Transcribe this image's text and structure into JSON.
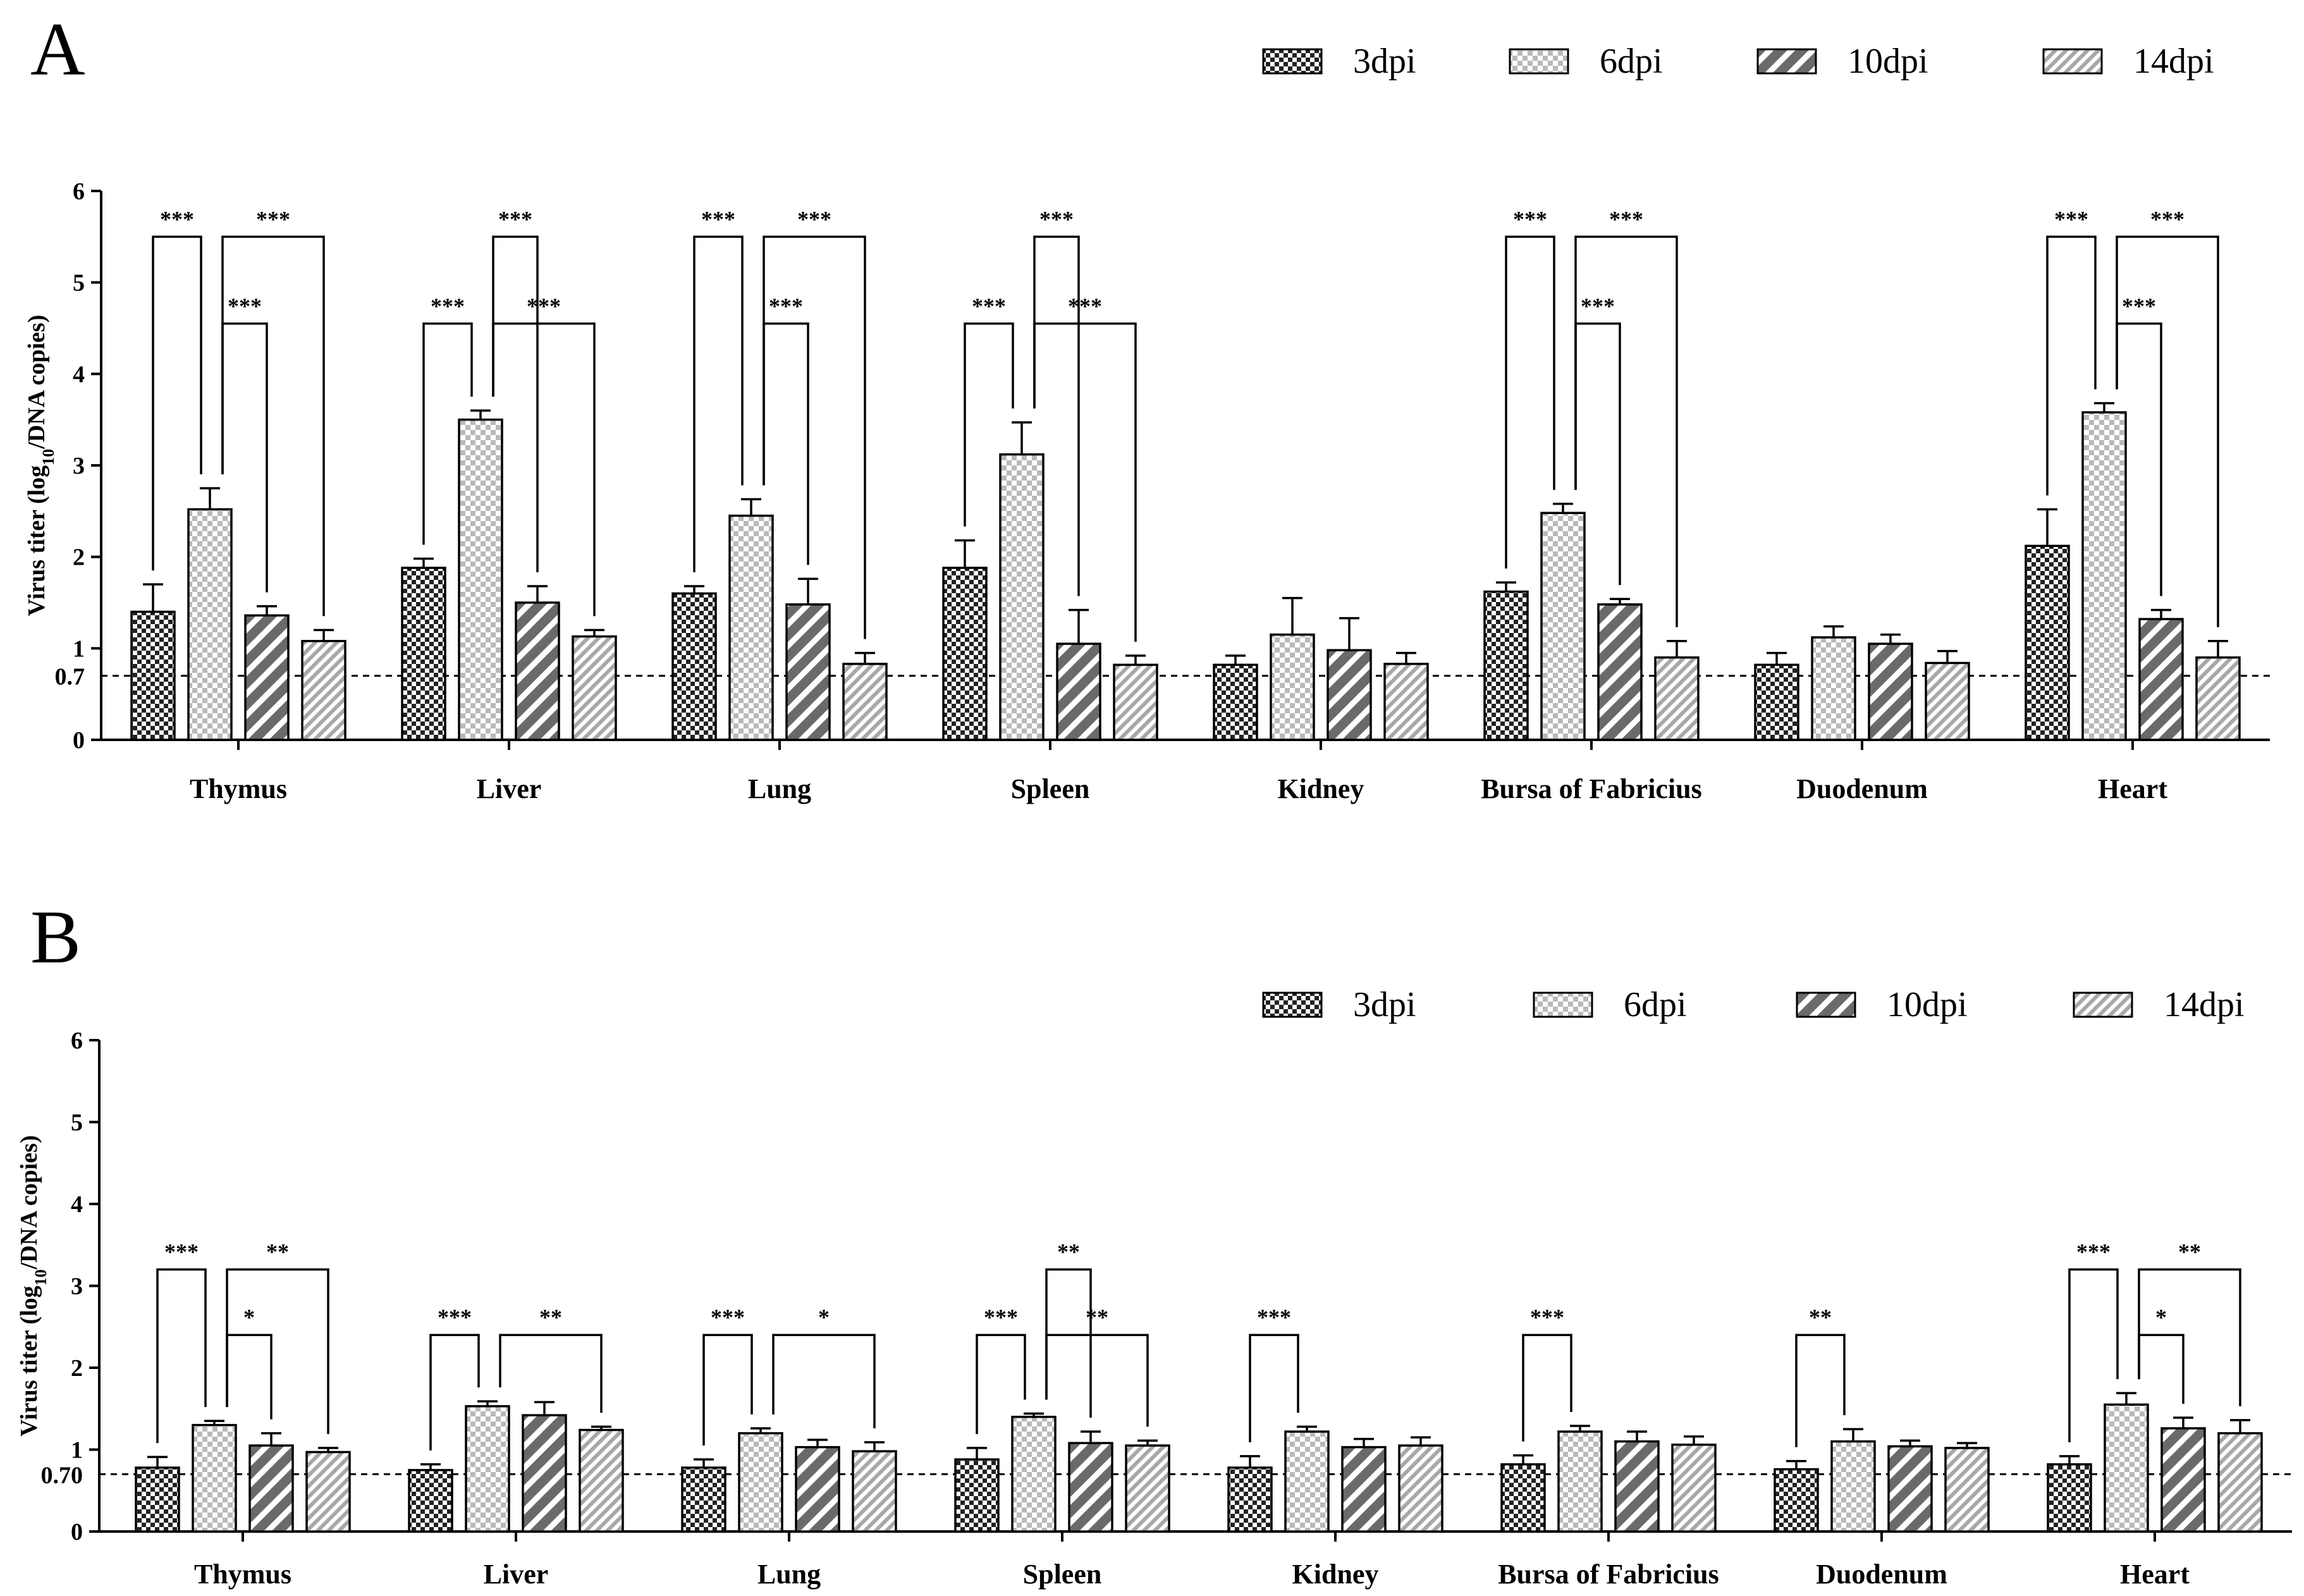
{
  "figure": {
    "series_names": [
      "3dpi",
      "6dpi",
      "10dpi",
      "14dpi"
    ],
    "series_patterns": [
      "checker-dense",
      "checker-light",
      "diag-dark",
      "diag-light"
    ],
    "colors": {
      "ink": "#000000",
      "dark_fill": "#3a3a3a",
      "mid_fill": "#707070",
      "light_fill": "#b8b8b8",
      "background": "#ffffff"
    }
  },
  "chart_data": [
    {
      "panel": "A",
      "type": "bar",
      "ylabel_main": "Virus titer (log",
      "ylabel_sub": "10",
      "ylabel_tail": "/DNA copies)",
      "ylim": [
        0,
        6
      ],
      "yticks": [
        "0",
        "1",
        "2",
        "3",
        "4",
        "5",
        "6"
      ],
      "threshold": 0.7,
      "threshold_label": "0.7",
      "categories": [
        "Thymus",
        "Liver",
        "Lung",
        "Spleen",
        "Kidney",
        "Bursa of Fabricius",
        "Duodenum",
        "Heart"
      ],
      "series": [
        {
          "name": "3dpi",
          "values": [
            1.4,
            1.88,
            1.6,
            1.88,
            0.82,
            1.62,
            0.82,
            2.12
          ],
          "errors": [
            0.3,
            0.1,
            0.08,
            0.3,
            0.1,
            0.1,
            0.13,
            0.4
          ]
        },
        {
          "name": "6dpi",
          "values": [
            2.52,
            3.5,
            2.45,
            3.12,
            1.15,
            2.48,
            1.12,
            3.58
          ],
          "errors": [
            0.23,
            0.1,
            0.18,
            0.35,
            0.4,
            0.1,
            0.12,
            0.1
          ]
        },
        {
          "name": "10dpi",
          "values": [
            1.36,
            1.5,
            1.48,
            1.05,
            0.98,
            1.48,
            1.05,
            1.32
          ],
          "errors": [
            0.1,
            0.18,
            0.28,
            0.37,
            0.35,
            0.06,
            0.1,
            0.1
          ]
        },
        {
          "name": "14dpi",
          "values": [
            1.08,
            1.13,
            0.83,
            0.82,
            0.83,
            0.9,
            0.84,
            0.9
          ],
          "errors": [
            0.12,
            0.07,
            0.12,
            0.1,
            0.12,
            0.18,
            0.13,
            0.18
          ]
        }
      ],
      "significance": [
        {
          "category": 0,
          "from": 0,
          "to": 1,
          "label": "***",
          "level": 5.5
        },
        {
          "category": 0,
          "from": 1,
          "to": 3,
          "label": "***",
          "level": 5.5
        },
        {
          "category": 0,
          "from": 1,
          "to": 2,
          "label": "***",
          "level": 4.55
        },
        {
          "category": 1,
          "from": 1,
          "to": 2,
          "label": "***",
          "level": 5.5
        },
        {
          "category": 1,
          "from": 0,
          "to": 1,
          "label": "***",
          "level": 4.55
        },
        {
          "category": 1,
          "from": 1,
          "to": 3,
          "label": "***",
          "level": 4.55
        },
        {
          "category": 2,
          "from": 0,
          "to": 1,
          "label": "***",
          "level": 5.5
        },
        {
          "category": 2,
          "from": 1,
          "to": 3,
          "label": "***",
          "level": 5.5
        },
        {
          "category": 2,
          "from": 1,
          "to": 2,
          "label": "***",
          "level": 4.55
        },
        {
          "category": 3,
          "from": 1,
          "to": 2,
          "label": "***",
          "level": 5.5
        },
        {
          "category": 3,
          "from": 0,
          "to": 1,
          "label": "***",
          "level": 4.55
        },
        {
          "category": 3,
          "from": 1,
          "to": 3,
          "label": "***",
          "level": 4.55
        },
        {
          "category": 5,
          "from": 0,
          "to": 1,
          "label": "***",
          "level": 5.5
        },
        {
          "category": 5,
          "from": 1,
          "to": 3,
          "label": "***",
          "level": 5.5
        },
        {
          "category": 5,
          "from": 1,
          "to": 2,
          "label": "***",
          "level": 4.55
        },
        {
          "category": 7,
          "from": 0,
          "to": 1,
          "label": "***",
          "level": 5.5
        },
        {
          "category": 7,
          "from": 1,
          "to": 3,
          "label": "***",
          "level": 5.5
        },
        {
          "category": 7,
          "from": 1,
          "to": 2,
          "label": "***",
          "level": 4.55
        }
      ]
    },
    {
      "panel": "B",
      "type": "bar",
      "ylabel_main": "Virus titer (log",
      "ylabel_sub": "10",
      "ylabel_tail": "/DNA copies)",
      "ylim": [
        0,
        6
      ],
      "yticks": [
        "0",
        "1",
        "2",
        "3",
        "4",
        "5",
        "6"
      ],
      "threshold": 0.7,
      "threshold_label": "0.70",
      "categories": [
        "Thymus",
        "Liver",
        "Lung",
        "Spleen",
        "Kidney",
        "Bursa of Fabricius",
        "Duodenum",
        "Heart"
      ],
      "series": [
        {
          "name": "3dpi",
          "values": [
            0.78,
            0.75,
            0.78,
            0.88,
            0.78,
            0.82,
            0.76,
            0.82
          ],
          "errors": [
            0.13,
            0.07,
            0.1,
            0.14,
            0.14,
            0.11,
            0.1,
            0.1
          ]
        },
        {
          "name": "6dpi",
          "values": [
            1.3,
            1.53,
            1.2,
            1.4,
            1.22,
            1.22,
            1.1,
            1.55
          ],
          "errors": [
            0.05,
            0.06,
            0.06,
            0.04,
            0.06,
            0.07,
            0.15,
            0.14
          ]
        },
        {
          "name": "10dpi",
          "values": [
            1.05,
            1.42,
            1.03,
            1.08,
            1.03,
            1.1,
            1.04,
            1.26
          ],
          "errors": [
            0.15,
            0.16,
            0.09,
            0.14,
            0.1,
            0.12,
            0.07,
            0.13
          ]
        },
        {
          "name": "14dpi",
          "values": [
            0.97,
            1.24,
            0.98,
            1.05,
            1.05,
            1.06,
            1.02,
            1.2
          ],
          "errors": [
            0.05,
            0.04,
            0.11,
            0.06,
            0.1,
            0.1,
            0.06,
            0.16
          ]
        }
      ],
      "significance": [
        {
          "category": 0,
          "from": 0,
          "to": 1,
          "label": "***",
          "level": 3.2
        },
        {
          "category": 0,
          "from": 1,
          "to": 3,
          "label": "**",
          "level": 3.2
        },
        {
          "category": 0,
          "from": 1,
          "to": 2,
          "label": "*",
          "level": 2.4
        },
        {
          "category": 1,
          "from": 0,
          "to": 1,
          "label": "***",
          "level": 2.4
        },
        {
          "category": 1,
          "from": 1,
          "to": 3,
          "label": "**",
          "level": 2.4
        },
        {
          "category": 2,
          "from": 0,
          "to": 1,
          "label": "***",
          "level": 2.4
        },
        {
          "category": 2,
          "from": 1,
          "to": 3,
          "label": "*",
          "level": 2.4
        },
        {
          "category": 3,
          "from": 1,
          "to": 2,
          "label": "**",
          "level": 3.2
        },
        {
          "category": 3,
          "from": 0,
          "to": 1,
          "label": "***",
          "level": 2.4
        },
        {
          "category": 3,
          "from": 1,
          "to": 3,
          "label": "**",
          "level": 2.4
        },
        {
          "category": 4,
          "from": 0,
          "to": 1,
          "label": "***",
          "level": 2.4
        },
        {
          "category": 5,
          "from": 0,
          "to": 1,
          "label": "***",
          "level": 2.4
        },
        {
          "category": 6,
          "from": 0,
          "to": 1,
          "label": "**",
          "level": 2.4
        },
        {
          "category": 7,
          "from": 0,
          "to": 1,
          "label": "***",
          "level": 3.2
        },
        {
          "category": 7,
          "from": 1,
          "to": 3,
          "label": "**",
          "level": 3.2
        },
        {
          "category": 7,
          "from": 1,
          "to": 2,
          "label": "*",
          "level": 2.4
        }
      ]
    }
  ]
}
